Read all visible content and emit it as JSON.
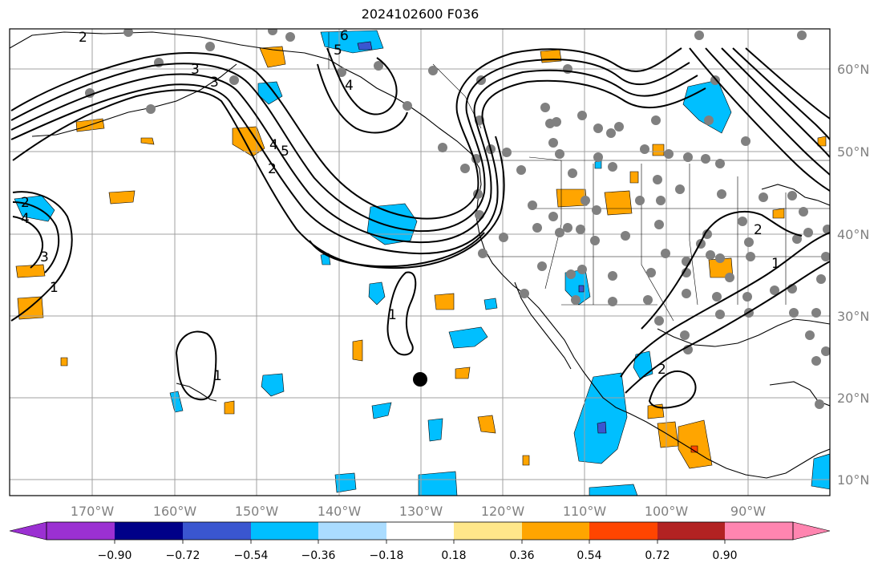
{
  "title": "2024102600 F036",
  "colors": {
    "c_neg090": "#9b30d2",
    "c_neg072": "#000088",
    "c_neg054": "#3a56d0",
    "c_neg036": "#00bfff",
    "c_neg018": "#aadcff",
    "c_zero": "#ffffff",
    "c_pos018": "#ffe78a",
    "c_pos036": "#ffa500",
    "c_pos054": "#ff4500",
    "c_pos072": "#b22222",
    "c_pos090": "#ff85b0",
    "grid": "#a0a0a0",
    "axis_text": "#808080",
    "station": "#808080"
  },
  "map": {
    "lat_labels": [
      "60°N",
      "50°N",
      "40°N",
      "30°N",
      "20°N",
      "10°N"
    ],
    "lon_labels": [
      "170°W",
      "160°W",
      "150°W",
      "140°W",
      "130°W",
      "120°W",
      "110°W",
      "100°W",
      "90°W"
    ],
    "contour_labels": [
      "2",
      "3",
      "4",
      "5",
      "6",
      "5",
      "4",
      "3",
      "2",
      "1",
      "1",
      "1",
      "2",
      "2",
      "1",
      "2",
      "3",
      "4"
    ]
  },
  "colorbar": {
    "tick_labels": [
      "−0.90",
      "−0.72",
      "−0.54",
      "−0.36",
      "−0.18",
      "0.18",
      "0.36",
      "0.54",
      "0.72",
      "0.90"
    ]
  }
}
